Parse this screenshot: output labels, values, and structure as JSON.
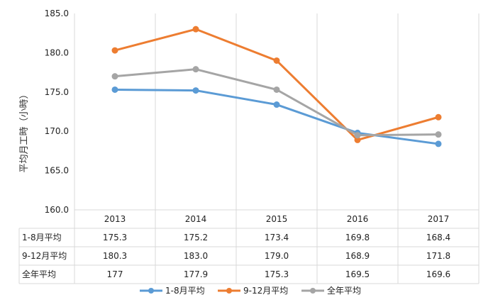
{
  "chart_data": {
    "type": "line",
    "categories": [
      "2013",
      "2014",
      "2015",
      "2016",
      "2017"
    ],
    "ylabel": "平均月工時（小時）",
    "ylim": [
      160.0,
      185.0
    ],
    "yticks": [
      "160.0",
      "165.0",
      "170.0",
      "175.0",
      "180.0",
      "185.0"
    ],
    "grid": "vertical category separators",
    "legend_position": "bottom",
    "series": [
      {
        "name": "1-8月平均",
        "color": "#5b9bd5",
        "values": [
          175.3,
          175.2,
          173.4,
          169.8,
          168.4
        ],
        "labels": [
          "175.3",
          "175.2",
          "173.4",
          "169.8",
          "168.4"
        ]
      },
      {
        "name": "9-12月平均",
        "color": "#ed7d31",
        "values": [
          180.3,
          183.0,
          179.0,
          168.9,
          171.8
        ],
        "labels": [
          "180.3",
          "183.0",
          "179.0",
          "168.9",
          "171.8"
        ]
      },
      {
        "name": "全年平均",
        "color": "#a5a5a5",
        "values": [
          177,
          177.9,
          175.3,
          169.5,
          169.6
        ],
        "labels": [
          "177",
          "177.9",
          "175.3",
          "169.5",
          "169.6"
        ]
      }
    ]
  }
}
